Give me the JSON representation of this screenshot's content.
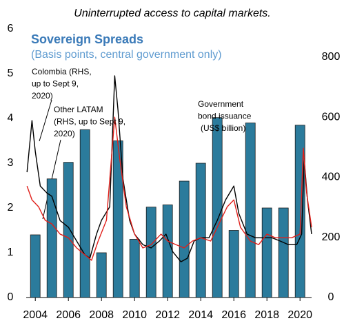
{
  "chart_data": {
    "type": "combo",
    "title": "Uninterrupted access to capital markets.",
    "inset_title": "Sovereign Spreads",
    "subtitle": "(Basis points, central government only)",
    "xlim": [
      2003.45,
      2020.7
    ],
    "xticks": [
      2004,
      2006,
      2008,
      2010,
      2012,
      2014,
      2016,
      2018,
      2020
    ],
    "ylim": [
      0,
      6
    ],
    "yticks": [
      0,
      1,
      2,
      3,
      4,
      5,
      6
    ],
    "y2lim": [
      0,
      894
    ],
    "y2ticks": [
      0,
      200,
      400,
      600,
      800
    ],
    "annotations": [
      {
        "lines": [
          "Colombia (RHS,",
          "up to Sept 9,",
          "2020)"
        ]
      },
      {
        "lines": [
          "Other LATAM",
          "(RHS, up to Sept 9,",
          "2020)"
        ]
      },
      {
        "lines": [
          "Government",
          "bond issuance",
          "(US$ billion)"
        ]
      }
    ],
    "series": [
      {
        "type": "bar",
        "axis": "y",
        "color": "#2b7b9c",
        "x": [
          2004,
          2005,
          2006,
          2007,
          2008,
          2009,
          2010,
          2011,
          2012,
          2013,
          2014,
          2015,
          2016,
          2017,
          2018,
          2019,
          2020
        ],
        "values": [
          1.4,
          2.65,
          3.02,
          3.75,
          1.0,
          3.5,
          1.3,
          2.02,
          2.07,
          2.6,
          3.0,
          4.02,
          1.5,
          3.9,
          2.0,
          2.0,
          3.85
        ]
      },
      {
        "type": "line",
        "axis": "y2",
        "color": "#000000",
        "x": [
          2003.5,
          2003.8,
          2004.0,
          2004.3,
          2004.7,
          2005.0,
          2005.5,
          2006.0,
          2006.5,
          2007.0,
          2007.3,
          2007.7,
          2008.0,
          2008.5,
          2008.8,
          2009.0,
          2009.3,
          2009.7,
          2010.0,
          2010.5,
          2011.0,
          2011.5,
          2011.9,
          2012.3,
          2012.8,
          2013.2,
          2013.6,
          2014.0,
          2014.5,
          2015.0,
          2015.5,
          2016.0,
          2016.3,
          2016.8,
          2017.3,
          2017.8,
          2018.3,
          2018.8,
          2019.3,
          2019.8,
          2020.1,
          2020.25,
          2020.45,
          2020.6,
          2020.7
        ],
        "values": [
          417,
          589,
          486,
          371,
          348,
          337,
          256,
          234,
          188,
          142,
          131,
          211,
          257,
          302,
          738,
          623,
          394,
          257,
          211,
          176,
          165,
          188,
          211,
          153,
          119,
          131,
          188,
          199,
          199,
          257,
          325,
          371,
          280,
          211,
          199,
          199,
          199,
          188,
          176,
          176,
          211,
          463,
          325,
          257,
          211
        ]
      },
      {
        "type": "line",
        "axis": "y2",
        "color": "#e0201b",
        "x": [
          2003.5,
          2003.8,
          2004.2,
          2004.6,
          2005.0,
          2005.5,
          2006.0,
          2006.5,
          2007.0,
          2007.4,
          2007.8,
          2008.3,
          2008.8,
          2009.1,
          2009.5,
          2010.0,
          2010.5,
          2011.0,
          2011.6,
          2012.0,
          2012.5,
          2013.0,
          2013.5,
          2014.0,
          2014.6,
          2015.0,
          2015.6,
          2016.0,
          2016.4,
          2017.0,
          2017.5,
          2018.0,
          2018.5,
          2019.0,
          2019.5,
          2020.0,
          2020.2,
          2020.4,
          2020.7
        ],
        "values": [
          371,
          325,
          302,
          257,
          245,
          211,
          199,
          165,
          142,
          124,
          188,
          257,
          600,
          463,
          302,
          211,
          165,
          176,
          211,
          188,
          176,
          165,
          188,
          199,
          188,
          234,
          302,
          325,
          234,
          188,
          176,
          211,
          199,
          199,
          199,
          211,
          497,
          348,
          234
        ]
      }
    ]
  }
}
